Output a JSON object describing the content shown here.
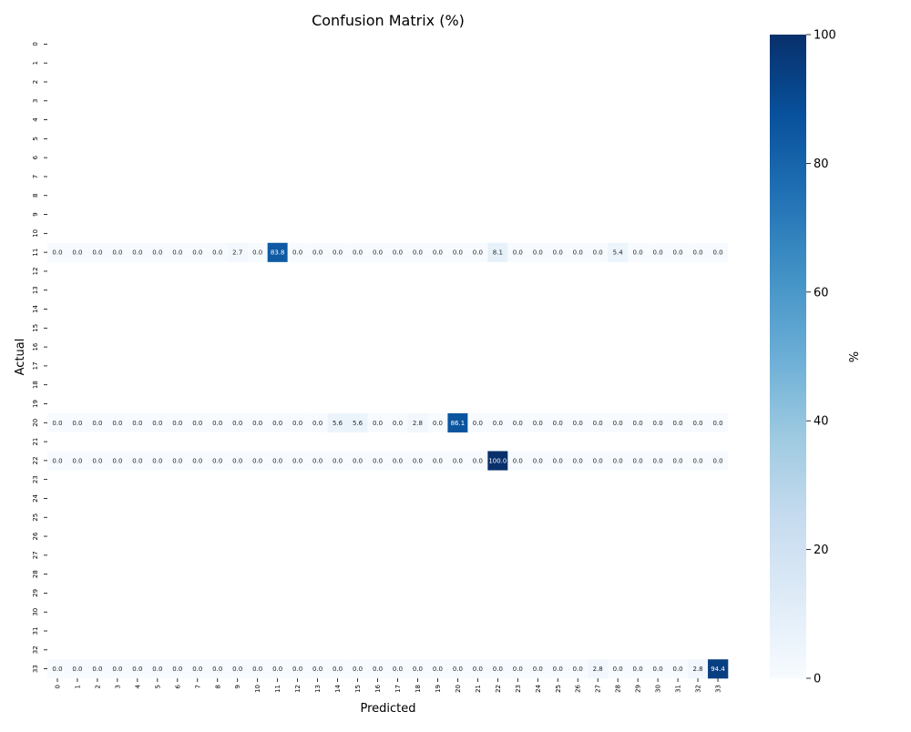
{
  "chart_data": {
    "type": "heatmap",
    "title": "Confusion Matrix (%)",
    "xlabel": "Predicted",
    "ylabel": "Actual",
    "x_tick_labels": [
      "0",
      "1",
      "2",
      "3",
      "4",
      "5",
      "6",
      "7",
      "8",
      "9",
      "10",
      "11",
      "12",
      "13",
      "14",
      "15",
      "16",
      "17",
      "18",
      "19",
      "20",
      "21",
      "22",
      "23",
      "24",
      "25",
      "26",
      "27",
      "28",
      "29",
      "30",
      "31",
      "32",
      "33"
    ],
    "y_tick_labels": [
      "0",
      "1",
      "2",
      "3",
      "4",
      "5",
      "6",
      "7",
      "8",
      "9",
      "10",
      "11",
      "12",
      "13",
      "14",
      "15",
      "16",
      "17",
      "18",
      "19",
      "20",
      "21",
      "22",
      "23",
      "24",
      "25",
      "26",
      "27",
      "28",
      "29",
      "30",
      "31",
      "32",
      "33"
    ],
    "rows": [
      {
        "actual": "11",
        "values": [
          0.0,
          0.0,
          0.0,
          0.0,
          0.0,
          0.0,
          0.0,
          0.0,
          0.0,
          2.7,
          0.0,
          83.8,
          0.0,
          0.0,
          0.0,
          0.0,
          0.0,
          0.0,
          0.0,
          0.0,
          0.0,
          0.0,
          8.1,
          0.0,
          0.0,
          0.0,
          0.0,
          0.0,
          5.4,
          0.0,
          0.0,
          0.0,
          0.0,
          0.0
        ]
      },
      {
        "actual": "20",
        "values": [
          0.0,
          0.0,
          0.0,
          0.0,
          0.0,
          0.0,
          0.0,
          0.0,
          0.0,
          0.0,
          0.0,
          0.0,
          0.0,
          0.0,
          5.6,
          5.6,
          0.0,
          0.0,
          2.8,
          0.0,
          86.1,
          0.0,
          0.0,
          0.0,
          0.0,
          0.0,
          0.0,
          0.0,
          0.0,
          0.0,
          0.0,
          0.0,
          0.0,
          0.0
        ]
      },
      {
        "actual": "22",
        "values": [
          0.0,
          0.0,
          0.0,
          0.0,
          0.0,
          0.0,
          0.0,
          0.0,
          0.0,
          0.0,
          0.0,
          0.0,
          0.0,
          0.0,
          0.0,
          0.0,
          0.0,
          0.0,
          0.0,
          0.0,
          0.0,
          0.0,
          100.0,
          0.0,
          0.0,
          0.0,
          0.0,
          0.0,
          0.0,
          0.0,
          0.0,
          0.0,
          0.0,
          0.0
        ]
      },
      {
        "actual": "33",
        "values": [
          0.0,
          0.0,
          0.0,
          0.0,
          0.0,
          0.0,
          0.0,
          0.0,
          0.0,
          0.0,
          0.0,
          0.0,
          0.0,
          0.0,
          0.0,
          0.0,
          0.0,
          0.0,
          0.0,
          0.0,
          0.0,
          0.0,
          0.0,
          0.0,
          0.0,
          0.0,
          0.0,
          2.8,
          0.0,
          0.0,
          0.0,
          0.0,
          2.8,
          94.4
        ]
      }
    ],
    "colorbar": {
      "label": "%",
      "range": [
        0,
        100
      ],
      "ticks": [
        0,
        20,
        40,
        60,
        80,
        100
      ],
      "colormap": "Blues",
      "color_stops": [
        "#f7fbff",
        "#deebf7",
        "#c6dbef",
        "#9ecae1",
        "#6baed6",
        "#4292c6",
        "#2171b5",
        "#08519c",
        "#08306b"
      ]
    },
    "grid": false
  }
}
